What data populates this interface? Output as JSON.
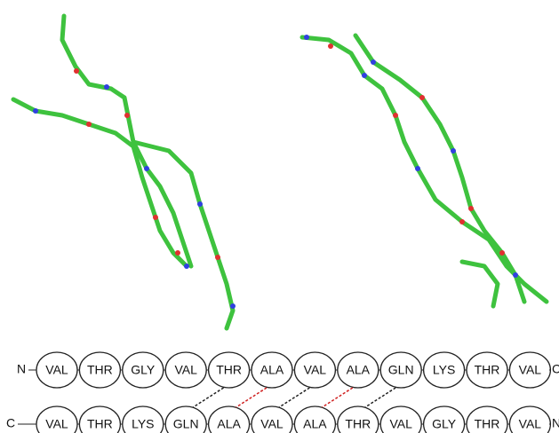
{
  "top_strand": {
    "start": "N",
    "end": "C",
    "residues": [
      "VAL",
      "THR",
      "GLY",
      "VAL",
      "THR",
      "ALA",
      "VAL",
      "ALA",
      "GLN",
      "LYS",
      "THR",
      "VAL"
    ]
  },
  "bottom_strand": {
    "start": "C",
    "end": "N",
    "residues": [
      "VAL",
      "THR",
      "LYS",
      "GLN",
      "ALA",
      "VAL",
      "ALA",
      "THR",
      "VAL",
      "GLY",
      "THR",
      "VAL"
    ]
  }
}
